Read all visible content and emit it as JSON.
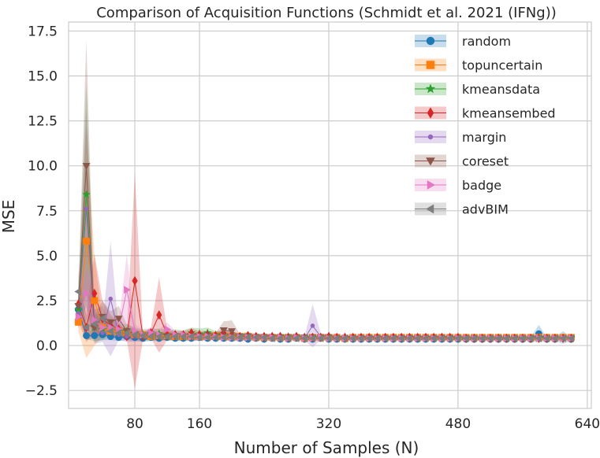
{
  "chart_data": {
    "type": "line",
    "title": "Comparison of Acquisition Functions (Schmidt et al. 2021 (IFNg))",
    "xlabel": "Number of Samples (N)",
    "ylabel": "MSE",
    "xlim": [
      -2,
      645
    ],
    "ylim": [
      -3.5,
      18.0
    ],
    "xticks": [
      80,
      160,
      320,
      480,
      640
    ],
    "xtick_labels": [
      "80",
      "160",
      "320",
      "480",
      "640"
    ],
    "yticks": [
      -2.5,
      0.0,
      2.5,
      5.0,
      7.5,
      10.0,
      12.5,
      15.0,
      17.5
    ],
    "ytick_labels": [
      "−2.5",
      "0.0",
      "2.5",
      "5.0",
      "7.5",
      "10.0",
      "12.5",
      "15.0",
      "17.5"
    ],
    "grid": true,
    "legend_position": "top-right",
    "x": [
      10,
      20,
      30,
      40,
      50,
      60,
      70,
      80,
      90,
      100,
      110,
      120,
      130,
      140,
      150,
      160,
      170,
      180,
      190,
      200,
      210,
      220,
      230,
      240,
      250,
      260,
      270,
      280,
      290,
      300,
      310,
      320,
      330,
      340,
      350,
      360,
      370,
      380,
      390,
      400,
      410,
      420,
      430,
      440,
      450,
      460,
      470,
      480,
      490,
      500,
      510,
      520,
      530,
      540,
      550,
      560,
      570,
      580,
      590,
      600,
      610,
      620
    ],
    "series": [
      {
        "name": "random",
        "color": "#1f77b4",
        "marker": "circle",
        "values": [
          2.0,
          0.55,
          0.55,
          0.6,
          0.5,
          0.45,
          0.5,
          0.45,
          0.4,
          0.45,
          0.4,
          0.45,
          0.4,
          0.4,
          0.4,
          0.45,
          0.4,
          0.4,
          0.4,
          0.4,
          0.4,
          0.35,
          0.4,
          0.35,
          0.4,
          0.35,
          0.35,
          0.4,
          0.35,
          0.35,
          0.4,
          0.35,
          0.35,
          0.35,
          0.35,
          0.35,
          0.35,
          0.35,
          0.35,
          0.35,
          0.35,
          0.35,
          0.35,
          0.35,
          0.35,
          0.35,
          0.35,
          0.35,
          0.35,
          0.35,
          0.35,
          0.35,
          0.35,
          0.35,
          0.35,
          0.35,
          0.35,
          0.65,
          0.35,
          0.35,
          0.45,
          0.35
        ],
        "band": [
          0.3,
          0.2,
          0.3,
          0.3,
          0.2,
          0.2,
          0.2,
          0.2,
          0.2,
          0.2,
          0.15,
          0.15,
          0.15,
          0.15,
          0.15,
          0.15,
          0.1,
          0.1,
          0.1,
          0.1,
          0.1,
          0.1,
          0.1,
          0.1,
          0.1,
          0.1,
          0.1,
          0.1,
          0.1,
          0.1,
          0.1,
          0.1,
          0.1,
          0.1,
          0.1,
          0.1,
          0.1,
          0.1,
          0.1,
          0.1,
          0.1,
          0.1,
          0.1,
          0.1,
          0.1,
          0.1,
          0.1,
          0.1,
          0.1,
          0.1,
          0.1,
          0.1,
          0.1,
          0.1,
          0.1,
          0.1,
          0.1,
          0.5,
          0.1,
          0.1,
          0.35,
          0.1
        ]
      },
      {
        "name": "topuncertain",
        "color": "#ff7f0e",
        "marker": "square",
        "values": [
          1.3,
          5.8,
          2.5,
          1.0,
          0.8,
          0.8,
          0.7,
          0.6,
          0.6,
          0.5,
          0.55,
          0.55,
          0.5,
          0.5,
          0.5,
          0.5,
          0.5,
          0.55,
          0.5,
          0.5,
          0.5,
          0.5,
          0.45,
          0.45,
          0.45,
          0.45,
          0.45,
          0.45,
          0.4,
          0.45,
          0.45,
          0.45,
          0.45,
          0.4,
          0.45,
          0.45,
          0.45,
          0.45,
          0.45,
          0.45,
          0.45,
          0.45,
          0.45,
          0.45,
          0.45,
          0.45,
          0.45,
          0.45,
          0.45,
          0.45,
          0.45,
          0.45,
          0.45,
          0.45,
          0.45,
          0.45,
          0.45,
          0.45,
          0.45,
          0.45,
          0.45,
          0.45
        ],
        "band": [
          0.5,
          6.5,
          2.5,
          0.5,
          0.3,
          0.3,
          0.3,
          0.3,
          0.2,
          0.2,
          0.2,
          0.2,
          0.2,
          0.2,
          0.2,
          0.2,
          0.2,
          0.2,
          0.15,
          0.15,
          0.15,
          0.15,
          0.15,
          0.15,
          0.15,
          0.15,
          0.1,
          0.1,
          0.1,
          0.1,
          0.1,
          0.1,
          0.1,
          0.1,
          0.1,
          0.1,
          0.1,
          0.1,
          0.1,
          0.1,
          0.1,
          0.1,
          0.1,
          0.1,
          0.1,
          0.1,
          0.1,
          0.1,
          0.1,
          0.1,
          0.1,
          0.1,
          0.1,
          0.1,
          0.1,
          0.1,
          0.1,
          0.1,
          0.1,
          0.1,
          0.1,
          0.1
        ]
      },
      {
        "name": "kmeansdata",
        "color": "#2ca02c",
        "marker": "star",
        "values": [
          2.0,
          8.4,
          1.0,
          0.9,
          1.0,
          0.8,
          0.8,
          0.7,
          0.6,
          0.6,
          0.65,
          0.6,
          0.6,
          0.55,
          0.7,
          0.65,
          0.7,
          0.6,
          0.55,
          0.55,
          0.5,
          0.55,
          0.5,
          0.5,
          0.5,
          0.5,
          0.5,
          0.5,
          0.45,
          0.45,
          0.45,
          0.5,
          0.45,
          0.45,
          0.45,
          0.45,
          0.45,
          0.45,
          0.45,
          0.45,
          0.45,
          0.45,
          0.45,
          0.45,
          0.45,
          0.45,
          0.45,
          0.4,
          0.4,
          0.4,
          0.4,
          0.4,
          0.4,
          0.4,
          0.4,
          0.4,
          0.4,
          0.4,
          0.4,
          0.4,
          0.4,
          0.4
        ],
        "band": [
          0.8,
          6.2,
          0.8,
          0.6,
          0.5,
          0.4,
          0.4,
          0.3,
          0.3,
          0.3,
          0.3,
          0.3,
          0.3,
          0.3,
          0.3,
          0.3,
          0.3,
          0.2,
          0.2,
          0.2,
          0.2,
          0.2,
          0.15,
          0.15,
          0.15,
          0.15,
          0.15,
          0.15,
          0.1,
          0.1,
          0.1,
          0.15,
          0.1,
          0.1,
          0.1,
          0.1,
          0.1,
          0.1,
          0.1,
          0.1,
          0.1,
          0.1,
          0.1,
          0.1,
          0.1,
          0.1,
          0.1,
          0.1,
          0.1,
          0.1,
          0.1,
          0.1,
          0.1,
          0.1,
          0.1,
          0.1,
          0.1,
          0.1,
          0.1,
          0.1,
          0.1,
          0.1
        ]
      },
      {
        "name": "kmeansembed",
        "color": "#d62728",
        "marker": "diamond",
        "values": [
          2.3,
          1.0,
          2.9,
          1.5,
          1.1,
          0.9,
          0.5,
          3.6,
          0.5,
          0.7,
          1.7,
          0.6,
          0.6,
          0.6,
          0.7,
          0.6,
          0.6,
          0.55,
          0.7,
          0.6,
          0.5,
          0.55,
          0.5,
          0.5,
          0.5,
          0.5,
          0.45,
          0.5,
          0.45,
          0.45,
          0.45,
          0.5,
          0.45,
          0.45,
          0.45,
          0.45,
          0.45,
          0.45,
          0.45,
          0.45,
          0.45,
          0.45,
          0.45,
          0.45,
          0.45,
          0.45,
          0.45,
          0.45,
          0.4,
          0.4,
          0.4,
          0.4,
          0.4,
          0.4,
          0.4,
          0.4,
          0.4,
          0.4,
          0.4,
          0.4,
          0.4,
          0.4
        ],
        "band": [
          1.0,
          0.8,
          2.2,
          1.0,
          0.6,
          0.4,
          0.2,
          6.0,
          0.2,
          0.3,
          2.1,
          0.3,
          0.2,
          0.2,
          0.25,
          0.2,
          0.2,
          0.2,
          0.2,
          0.2,
          0.15,
          0.15,
          0.15,
          0.15,
          0.1,
          0.1,
          0.1,
          0.1,
          0.1,
          0.1,
          0.1,
          0.1,
          0.1,
          0.1,
          0.1,
          0.1,
          0.1,
          0.1,
          0.1,
          0.1,
          0.1,
          0.1,
          0.1,
          0.1,
          0.1,
          0.1,
          0.1,
          0.1,
          0.1,
          0.1,
          0.1,
          0.1,
          0.1,
          0.1,
          0.1,
          0.1,
          0.1,
          0.1,
          0.1,
          0.1,
          0.1,
          0.1
        ]
      },
      {
        "name": "margin",
        "color": "#9467bd",
        "marker": "dot",
        "values": [
          1.8,
          7.6,
          1.1,
          0.7,
          2.6,
          0.6,
          0.5,
          0.5,
          0.5,
          0.6,
          0.5,
          0.5,
          0.5,
          0.5,
          0.45,
          0.45,
          0.5,
          0.45,
          0.5,
          0.4,
          0.4,
          0.4,
          0.4,
          0.4,
          0.4,
          0.4,
          0.4,
          0.45,
          0.4,
          1.1,
          0.5,
          0.45,
          0.4,
          0.4,
          0.4,
          0.4,
          0.4,
          0.4,
          0.4,
          0.4,
          0.4,
          0.4,
          0.4,
          0.4,
          0.4,
          0.4,
          0.4,
          0.4,
          0.4,
          0.4,
          0.4,
          0.4,
          0.4,
          0.4,
          0.4,
          0.4,
          0.4,
          0.4,
          0.4,
          0.4,
          0.4,
          0.4
        ],
        "band": [
          0.8,
          5.5,
          1.0,
          0.5,
          3.2,
          0.3,
          0.3,
          0.3,
          0.2,
          0.3,
          0.2,
          0.2,
          0.2,
          0.2,
          0.2,
          0.2,
          0.2,
          0.15,
          0.2,
          0.15,
          0.15,
          0.15,
          0.1,
          0.1,
          0.1,
          0.1,
          0.1,
          0.15,
          0.1,
          1.2,
          0.2,
          0.15,
          0.1,
          0.1,
          0.1,
          0.1,
          0.1,
          0.1,
          0.1,
          0.1,
          0.1,
          0.1,
          0.1,
          0.1,
          0.1,
          0.1,
          0.1,
          0.1,
          0.1,
          0.1,
          0.1,
          0.1,
          0.1,
          0.1,
          0.1,
          0.1,
          0.1,
          0.1,
          0.1,
          0.1,
          0.1,
          0.1
        ]
      },
      {
        "name": "coreset",
        "color": "#8c564b",
        "marker": "triangle-down",
        "values": [
          2.2,
          10.0,
          1.0,
          1.6,
          1.3,
          1.5,
          0.8,
          0.6,
          0.5,
          0.6,
          0.5,
          0.5,
          0.5,
          0.5,
          0.5,
          0.5,
          0.55,
          0.5,
          0.85,
          0.8,
          0.5,
          0.5,
          0.45,
          0.45,
          0.45,
          0.45,
          0.45,
          0.45,
          0.45,
          0.45,
          0.45,
          0.45,
          0.4,
          0.4,
          0.4,
          0.4,
          0.4,
          0.4,
          0.4,
          0.4,
          0.4,
          0.4,
          0.4,
          0.4,
          0.4,
          0.4,
          0.4,
          0.4,
          0.4,
          0.4,
          0.4,
          0.4,
          0.4,
          0.4,
          0.4,
          0.4,
          0.4,
          0.4,
          0.4,
          0.4,
          0.4,
          0.4
        ],
        "band": [
          0.9,
          7.0,
          0.6,
          0.9,
          0.6,
          0.7,
          0.4,
          0.3,
          0.2,
          0.3,
          0.2,
          0.2,
          0.2,
          0.2,
          0.2,
          0.2,
          0.2,
          0.2,
          0.5,
          0.6,
          0.15,
          0.15,
          0.1,
          0.1,
          0.1,
          0.1,
          0.1,
          0.1,
          0.1,
          0.1,
          0.1,
          0.1,
          0.1,
          0.1,
          0.1,
          0.1,
          0.1,
          0.1,
          0.1,
          0.1,
          0.1,
          0.1,
          0.1,
          0.1,
          0.1,
          0.1,
          0.1,
          0.1,
          0.1,
          0.1,
          0.1,
          0.1,
          0.1,
          0.1,
          0.1,
          0.1,
          0.1,
          0.1,
          0.1,
          0.1,
          0.1,
          0.1
        ]
      },
      {
        "name": "badge",
        "color": "#e377c2",
        "marker": "triangle-right",
        "values": [
          1.6,
          2.9,
          1.4,
          1.0,
          1.0,
          0.9,
          3.1,
          0.8,
          0.6,
          0.7,
          0.6,
          0.9,
          0.6,
          0.6,
          0.5,
          0.5,
          0.5,
          0.5,
          0.45,
          0.45,
          0.45,
          0.45,
          0.45,
          0.45,
          0.45,
          0.45,
          0.4,
          0.45,
          0.4,
          0.4,
          0.45,
          0.4,
          0.4,
          0.4,
          0.4,
          0.4,
          0.4,
          0.4,
          0.4,
          0.4,
          0.4,
          0.4,
          0.4,
          0.4,
          0.4,
          0.4,
          0.4,
          0.4,
          0.4,
          0.4,
          0.4,
          0.4,
          0.4,
          0.4,
          0.4,
          0.4,
          0.4,
          0.4,
          0.4,
          0.4,
          0.4,
          0.4
        ],
        "band": [
          0.6,
          1.5,
          0.7,
          0.5,
          0.4,
          0.4,
          2.0,
          0.4,
          0.3,
          0.3,
          0.3,
          0.4,
          0.2,
          0.2,
          0.2,
          0.2,
          0.2,
          0.2,
          0.15,
          0.15,
          0.15,
          0.15,
          0.1,
          0.1,
          0.1,
          0.1,
          0.1,
          0.1,
          0.1,
          0.1,
          0.1,
          0.1,
          0.1,
          0.1,
          0.1,
          0.1,
          0.1,
          0.1,
          0.1,
          0.1,
          0.1,
          0.1,
          0.1,
          0.1,
          0.1,
          0.1,
          0.1,
          0.1,
          0.1,
          0.1,
          0.1,
          0.1,
          0.1,
          0.1,
          0.1,
          0.1,
          0.1,
          0.1,
          0.1,
          0.1,
          0.1,
          0.1
        ]
      },
      {
        "name": "advBIM",
        "color": "#7f7f7f",
        "marker": "triangle-left",
        "values": [
          3.0,
          1.0,
          1.2,
          1.5,
          0.8,
          0.7,
          0.7,
          0.6,
          0.55,
          0.5,
          0.5,
          0.5,
          0.5,
          0.5,
          0.5,
          0.45,
          0.45,
          0.45,
          0.45,
          0.45,
          0.45,
          0.45,
          0.45,
          0.45,
          0.4,
          0.4,
          0.4,
          0.4,
          0.4,
          0.4,
          0.4,
          0.4,
          0.4,
          0.4,
          0.4,
          0.4,
          0.4,
          0.4,
          0.4,
          0.4,
          0.4,
          0.4,
          0.4,
          0.4,
          0.4,
          0.4,
          0.4,
          0.4,
          0.4,
          0.4,
          0.4,
          0.4,
          0.4,
          0.4,
          0.4,
          0.4,
          0.4,
          0.4,
          0.4,
          0.4,
          0.4,
          0.4
        ],
        "band": [
          1.2,
          0.7,
          0.8,
          0.7,
          0.4,
          0.3,
          0.3,
          0.3,
          0.2,
          0.2,
          0.2,
          0.2,
          0.2,
          0.2,
          0.2,
          0.15,
          0.15,
          0.15,
          0.15,
          0.15,
          0.15,
          0.1,
          0.1,
          0.1,
          0.1,
          0.1,
          0.1,
          0.1,
          0.1,
          0.1,
          0.1,
          0.1,
          0.1,
          0.1,
          0.1,
          0.1,
          0.1,
          0.1,
          0.1,
          0.1,
          0.1,
          0.1,
          0.1,
          0.1,
          0.1,
          0.1,
          0.1,
          0.1,
          0.1,
          0.1,
          0.1,
          0.1,
          0.1,
          0.1,
          0.1,
          0.1,
          0.1,
          0.1,
          0.1,
          0.1,
          0.1,
          0.1
        ]
      }
    ]
  }
}
